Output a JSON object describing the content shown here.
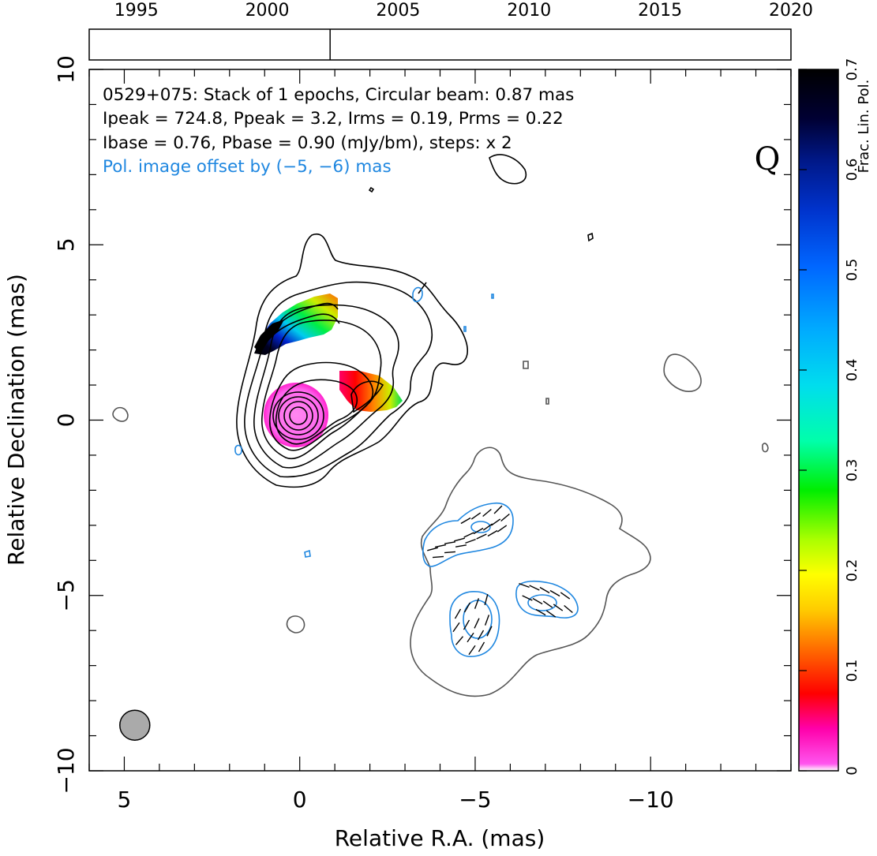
{
  "chart_data": {
    "type": "contour",
    "source": "0529+075",
    "annotations": {
      "line1": "0529+075: Stack of 1 epochs, Circular beam: 0.87 mas",
      "line2": "Ipeak = 724.8, Ppeak = 3.2, Irms = 0.19, Prms = 0.22",
      "line3": "Ibase = 0.76, Pbase = 0.90 (mJy/bm), steps: x 2",
      "line4": "Pol. image offset by (−5, −6) mas",
      "quality": "Q"
    },
    "xlabel": "Relative R.A. (mas)",
    "ylabel": "Relative Declination (mas)",
    "xlim": [
      6,
      -14
    ],
    "ylim": [
      -10,
      10
    ],
    "x_ticks": [
      5,
      0,
      -5,
      -10
    ],
    "x_tick_labels": [
      "5",
      "0",
      "−5",
      "−10"
    ],
    "y_ticks": [
      -10,
      -5,
      0,
      5,
      10
    ],
    "y_tick_labels": [
      "−10",
      "−5",
      "0",
      "5",
      "10"
    ],
    "timeline": {
      "years": [
        1995,
        2000,
        2005,
        2010,
        2015,
        2020
      ],
      "xlim": [
        1993.2,
        2020
      ],
      "epochs": [
        2002.4
      ]
    },
    "colorbar": {
      "label": "Frac. Lin. Pol.",
      "range": [
        0,
        0.7
      ],
      "ticks": [
        0,
        0.1,
        0.2,
        0.3,
        0.4,
        0.5,
        0.6,
        0.7
      ],
      "tick_labels": [
        "0",
        "0.1",
        "0.2",
        "0.3",
        "0.4",
        "0.5",
        "0.6",
        "0.7"
      ]
    },
    "beam": {
      "ra": 4.7,
      "dec": -8.7,
      "diameter_mas": 0.87
    },
    "colors": {
      "intensity_contour": "#000000",
      "base_contour": "#555555",
      "pol_contour": "#1f87e0",
      "beam_fill": "#aaaaaa"
    }
  }
}
